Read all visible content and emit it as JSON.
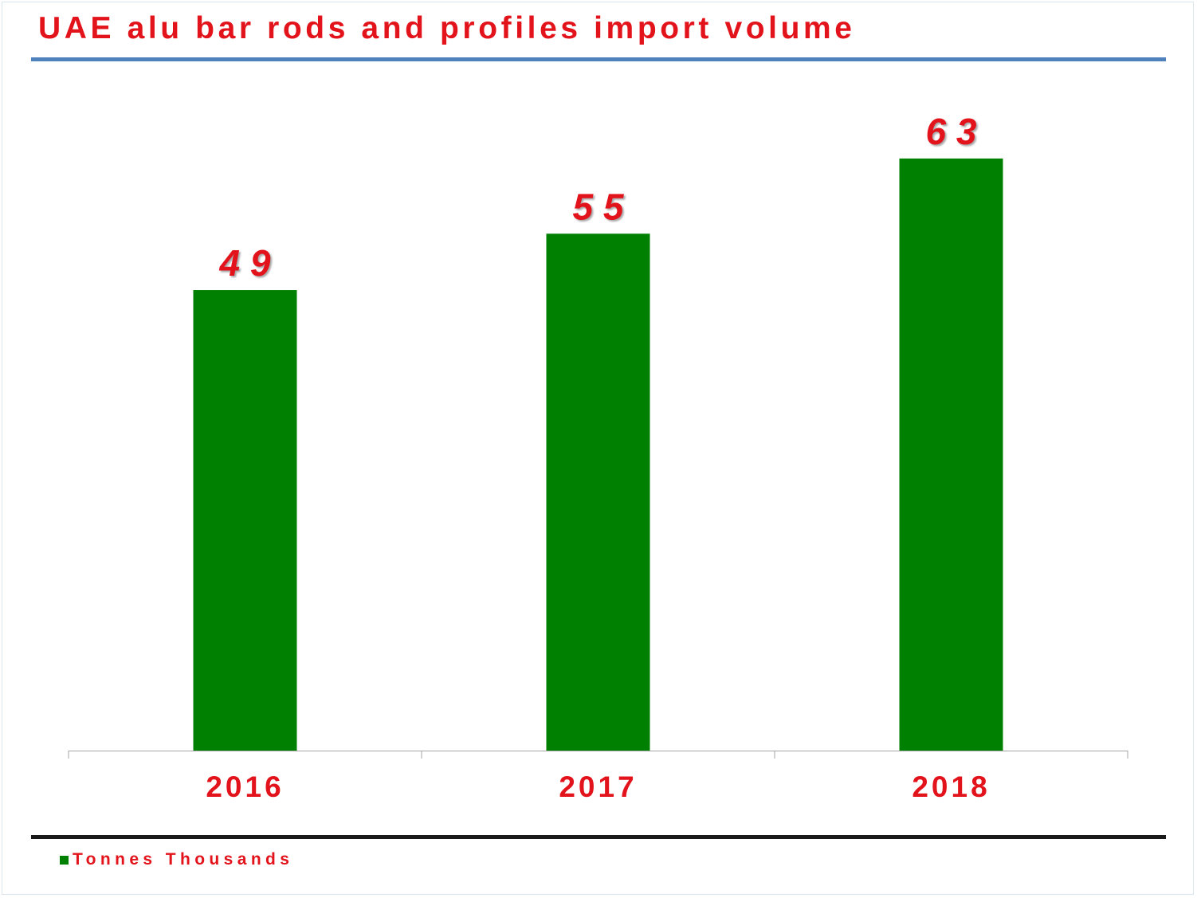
{
  "colors": {
    "title": "#e3131b",
    "bar": "#008000",
    "label": "#e3131b",
    "title_rule": "#4f81bd",
    "bottom_rule": "#1a1a1a",
    "axis": "#a6a6a6"
  },
  "chart_data": {
    "type": "bar",
    "title": "UAE alu bar rods and profiles import volume",
    "xlabel": "",
    "ylabel": "",
    "categories": [
      "2016",
      "2017",
      "2018"
    ],
    "series": [
      {
        "name": "Tonnes Thousands",
        "values": [
          49,
          55,
          63
        ],
        "data_labels": [
          "4 9",
          "5 5",
          "6 3"
        ]
      }
    ],
    "ylim": [
      0,
      66.3
    ],
    "grid": false,
    "legend": "bottom-left"
  }
}
